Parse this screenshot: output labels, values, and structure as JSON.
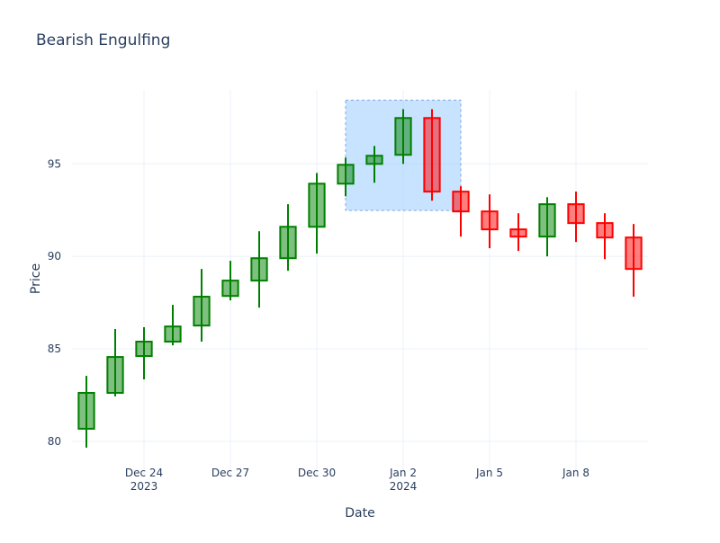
{
  "chart_data": {
    "type": "candlestick",
    "title": "Bearish Engulfing",
    "x_label": "Date",
    "y_label": "Price",
    "x": [
      "2023-12-22",
      "2023-12-23",
      "2023-12-24",
      "2023-12-25",
      "2023-12-26",
      "2023-12-27",
      "2023-12-28",
      "2023-12-29",
      "2023-12-30",
      "2023-12-31",
      "2024-01-01",
      "2024-01-02",
      "2024-01-03",
      "2024-01-04",
      "2024-01-05",
      "2024-01-06",
      "2024-01-07",
      "2024-01-08",
      "2024-01-09",
      "2024-01-10"
    ],
    "open": [
      80.68,
      82.62,
      84.61,
      85.39,
      86.26,
      87.86,
      88.69,
      89.9,
      91.6,
      93.93,
      95.0,
      95.49,
      97.48,
      93.5,
      92.43,
      91.46,
      91.07,
      92.82,
      91.8,
      91.02
    ],
    "high": [
      83.54,
      86.07,
      86.17,
      87.38,
      89.32,
      89.76,
      91.36,
      92.82,
      94.51,
      95.34,
      95.97,
      97.96,
      97.96,
      93.79,
      93.35,
      92.33,
      93.2,
      93.5,
      92.33,
      91.75
    ],
    "low": [
      79.66,
      82.43,
      83.35,
      85.19,
      85.39,
      87.62,
      87.23,
      89.22,
      90.15,
      93.25,
      93.98,
      95.0,
      93.01,
      91.07,
      90.44,
      90.29,
      90.0,
      90.78,
      89.85,
      87.82
    ],
    "close": [
      82.62,
      84.56,
      85.39,
      86.21,
      87.82,
      88.69,
      89.9,
      91.6,
      93.93,
      94.95,
      95.44,
      97.48,
      93.5,
      92.43,
      91.46,
      91.07,
      92.82,
      91.8,
      91.02,
      89.32
    ],
    "increasing_color": "#008000",
    "decreasing_color": "#ff0000",
    "highlight": {
      "x": [
        "2023-12-31",
        "2024-01-04"
      ],
      "y": [
        92.48,
        98.45
      ],
      "color": "#99ccff"
    },
    "xlim": [
      "2023-12-21T12:00",
      "2024-01-10T12:00"
    ],
    "xticks": [
      {
        "value": "2023-12-24",
        "label": "Dec 24\n2023"
      },
      {
        "value": "2023-12-27",
        "label": "Dec 27"
      },
      {
        "value": "2023-12-30",
        "label": "Dec 30"
      },
      {
        "value": "2024-01-02",
        "label": "Jan 2\n2024"
      },
      {
        "value": "2024-01-05",
        "label": "Jan 5"
      },
      {
        "value": "2024-01-08",
        "label": "Jan 8"
      }
    ],
    "ylim": [
      78.1,
      99
    ],
    "yticks": [
      80,
      85,
      90,
      95
    ],
    "grid": true
  }
}
